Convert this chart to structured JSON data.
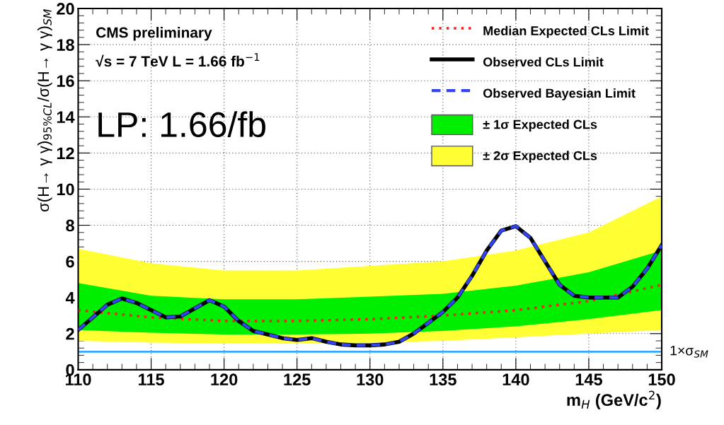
{
  "chart_data": {
    "type": "line",
    "x": [
      110,
      111,
      112,
      113,
      114,
      115,
      116,
      117,
      118,
      119,
      120,
      121,
      122,
      123,
      124,
      125,
      126,
      127,
      128,
      129,
      130,
      131,
      132,
      133,
      134,
      135,
      136,
      137,
      138,
      139,
      140,
      141,
      142,
      143,
      144,
      145,
      146,
      147,
      148,
      149,
      150
    ],
    "xlabel": "m$_{H}$ (GeV/c$^{2}$)",
    "ylabel": "σ(H→ γ γ)$_{95%CL}$/σ(H→ γ γ)$_{SM}$",
    "xlim": [
      110,
      150
    ],
    "xticks": [
      110,
      115,
      120,
      125,
      130,
      135,
      140,
      145,
      150
    ],
    "ylim": [
      0,
      20
    ],
    "yticks": [
      0,
      2,
      4,
      6,
      8,
      10,
      12,
      14,
      16,
      18,
      20
    ],
    "grid": true,
    "legend": "top right",
    "series": [
      {
        "name": "± 2σ Expected CLs",
        "color": "#ffff33",
        "x": [
          110,
          115,
          120,
          125,
          130,
          135,
          140,
          145,
          150
        ],
        "values": [
          null,
          null,
          null,
          null,
          null,
          null,
          null,
          null,
          null
        ],
        "lower": [
          1.6,
          1.5,
          1.45,
          1.45,
          1.5,
          1.6,
          1.8,
          2.0,
          2.2
        ],
        "upper": [
          6.7,
          5.9,
          5.5,
          5.5,
          5.75,
          6.0,
          6.6,
          7.6,
          9.6
        ]
      },
      {
        "name": "± 1σ Expected CLs",
        "color": "#00ee00",
        "x": [
          110,
          115,
          120,
          125,
          130,
          135,
          140,
          145,
          150
        ],
        "values": [
          null,
          null,
          null,
          null,
          null,
          null,
          null,
          null,
          null
        ],
        "lower": [
          2.2,
          2.05,
          1.95,
          1.95,
          2.0,
          2.15,
          2.4,
          2.8,
          3.3
        ],
        "upper": [
          4.8,
          4.1,
          3.9,
          3.9,
          4.05,
          4.2,
          4.65,
          5.4,
          6.6
        ]
      },
      {
        "name": "Median Expected CLs Limit",
        "color": "#ee2222",
        "line_style": "dotted",
        "x": [
          110,
          115,
          120,
          125,
          130,
          135,
          140,
          145,
          150
        ],
        "values": [
          3.3,
          2.9,
          2.7,
          2.7,
          2.8,
          3.0,
          3.3,
          3.8,
          4.7
        ]
      },
      {
        "name": "Observed CLs Limit",
        "color": "#000000",
        "line_style": "solid",
        "values": [
          2.2,
          2.9,
          3.6,
          3.95,
          3.7,
          3.3,
          2.9,
          2.95,
          3.4,
          3.85,
          3.5,
          2.7,
          2.15,
          1.95,
          1.75,
          1.65,
          1.75,
          1.55,
          1.4,
          1.35,
          1.35,
          1.4,
          1.55,
          2.0,
          2.6,
          3.2,
          4.0,
          5.2,
          6.6,
          7.7,
          7.95,
          7.3,
          6.0,
          4.7,
          4.1,
          4.0,
          4.0,
          4.0,
          4.6,
          5.6,
          6.9
        ]
      },
      {
        "name": "Observed Bayesian Limit",
        "color": "#3344ee",
        "line_style": "dashed",
        "values": [
          2.2,
          2.9,
          3.6,
          3.95,
          3.7,
          3.3,
          2.9,
          2.95,
          3.4,
          3.85,
          3.5,
          2.7,
          2.15,
          1.95,
          1.75,
          1.65,
          1.75,
          1.55,
          1.4,
          1.35,
          1.35,
          1.4,
          1.55,
          2.0,
          2.6,
          3.2,
          4.0,
          5.2,
          6.6,
          7.7,
          7.95,
          7.3,
          6.0,
          4.7,
          4.1,
          4.0,
          4.0,
          4.0,
          4.6,
          5.6,
          6.9
        ]
      }
    ],
    "ref_lines": [
      {
        "axis": "y",
        "value": 1,
        "label": "1×σ$_{SM}$",
        "color": "#33aaff"
      }
    ],
    "annotations": [
      "CMS preliminary",
      "√s = 7 TeV L = 1.66 fb$^{−1}$",
      "LP: 1.66/fb"
    ]
  }
}
